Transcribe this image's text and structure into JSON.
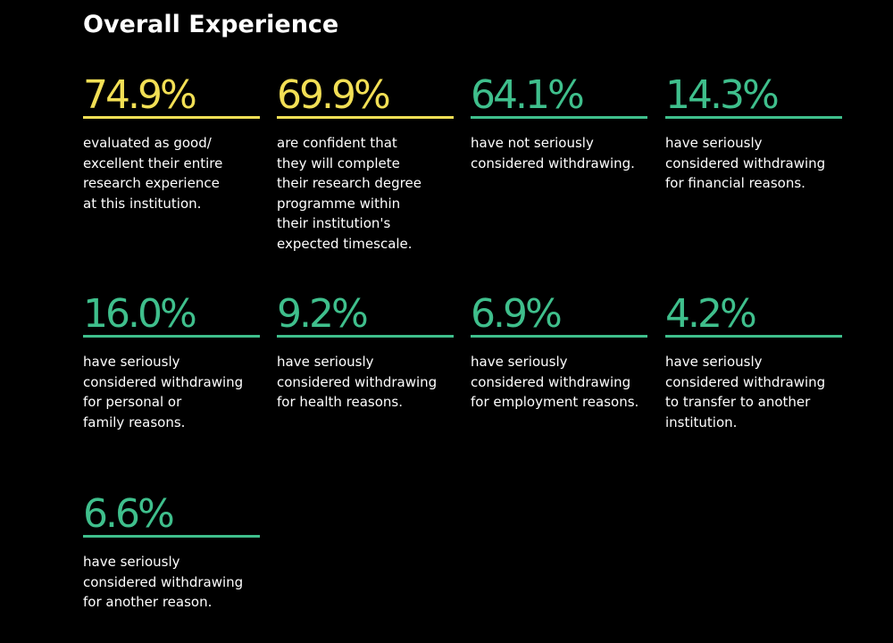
{
  "header": {
    "title": "Overall Experience"
  },
  "stats": [
    {
      "value": "74.9%",
      "color": "#f2df55",
      "lines": [
        "evaluated as good/",
        "excellent their entire",
        "research experience",
        "at this institution."
      ]
    },
    {
      "value": "69.9%",
      "color": "#f2df55",
      "lines": [
        "are confident that",
        "they will complete",
        "their research degree",
        "programme within",
        "their institution's",
        "expected timescale."
      ]
    },
    {
      "value": "64.1%",
      "color": "#3fbf8c",
      "lines": [
        "have not seriously",
        "considered withdrawing."
      ]
    },
    {
      "value": "14.3%",
      "color": "#3fbf8c",
      "lines": [
        "have seriously",
        "considered withdrawing",
        "for financial reasons."
      ]
    },
    {
      "value": "16.0%",
      "color": "#3fbf8c",
      "lines": [
        "have seriously",
        "considered withdrawing",
        "for personal or",
        "family reasons."
      ]
    },
    {
      "value": "9.2%",
      "color": "#3fbf8c",
      "lines": [
        "have seriously",
        "considered withdrawing",
        "for health reasons."
      ]
    },
    {
      "value": "6.9%",
      "color": "#3fbf8c",
      "lines": [
        "have seriously",
        "considered withdrawing",
        "for employment reasons."
      ]
    },
    {
      "value": "4.2%",
      "color": "#3fbf8c",
      "lines": [
        "have seriously",
        "considered withdrawing",
        "to transfer to another",
        "institution."
      ]
    },
    {
      "value": "6.6%",
      "color": "#3fbf8c",
      "lines": [
        "have seriously",
        "considered withdrawing",
        "for another reason."
      ]
    }
  ]
}
